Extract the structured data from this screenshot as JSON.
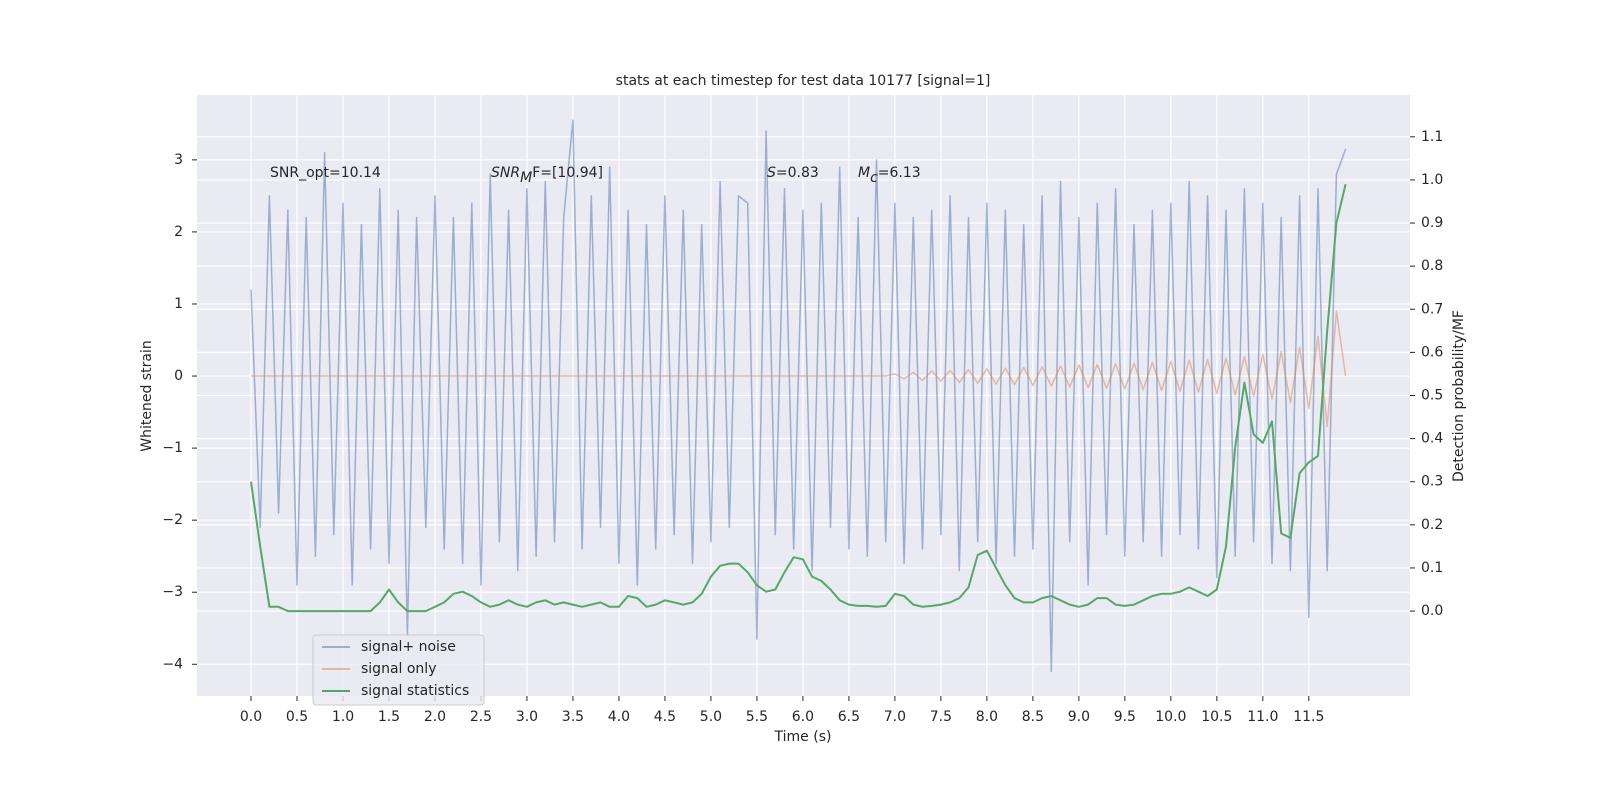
{
  "chart_data": {
    "type": "line",
    "title": "stats at each timestep for test data 10177 [signal=1]",
    "xlabel": "Time (s)",
    "ylabel": "Whitened strain",
    "y2label": "Detection probability/MF",
    "annotations": [
      {
        "text": "SNR_opt=10.14"
      },
      {
        "text": "SNR",
        "sub": "M",
        "after": "F=[10.94]",
        "italic": true
      },
      {
        "text": "S",
        "after": "=0.83",
        "italic": true
      },
      {
        "text": "M",
        "sub": "c",
        "after": "=6.13",
        "italic": true
      }
    ],
    "x": [
      0.0,
      0.1,
      0.2,
      0.3,
      0.4,
      0.5,
      0.6,
      0.7,
      0.8,
      0.9,
      1.0,
      1.1,
      1.2,
      1.3,
      1.4,
      1.5,
      1.6,
      1.7,
      1.8,
      1.9,
      2.0,
      2.1,
      2.2,
      2.3,
      2.4,
      2.5,
      2.6,
      2.7,
      2.8,
      2.9,
      3.0,
      3.1,
      3.2,
      3.3,
      3.4,
      3.5,
      3.6,
      3.7,
      3.8,
      3.9,
      4.0,
      4.1,
      4.2,
      4.3,
      4.4,
      4.5,
      4.6,
      4.7,
      4.8,
      4.9,
      5.0,
      5.1,
      5.2,
      5.3,
      5.4,
      5.5,
      5.6,
      5.7,
      5.8,
      5.9,
      6.0,
      6.1,
      6.2,
      6.3,
      6.4,
      6.5,
      6.6,
      6.7,
      6.8,
      6.9,
      7.0,
      7.1,
      7.2,
      7.3,
      7.4,
      7.5,
      7.6,
      7.7,
      7.8,
      7.9,
      8.0,
      8.1,
      8.2,
      8.3,
      8.4,
      8.5,
      8.6,
      8.7,
      8.8,
      8.9,
      9.0,
      9.1,
      9.2,
      9.3,
      9.4,
      9.5,
      9.6,
      9.7,
      9.8,
      9.9,
      10.0,
      10.1,
      10.2,
      10.3,
      10.4,
      10.5,
      10.6,
      10.7,
      10.8,
      10.9,
      11.0,
      11.1,
      11.2,
      11.3,
      11.4,
      11.5,
      11.6,
      11.7,
      11.8,
      11.9
    ],
    "series": [
      {
        "name": "signal+ noise",
        "color": "#4c72b0",
        "opacity": 0.5,
        "values": [
          1.2,
          -2.1,
          2.5,
          -1.9,
          2.3,
          -2.9,
          2.2,
          -2.5,
          3.1,
          -2.2,
          2.4,
          -2.9,
          2.1,
          -2.4,
          2.6,
          -2.6,
          2.3,
          -3.6,
          2.2,
          -2.1,
          2.5,
          -2.4,
          2.2,
          -2.6,
          2.4,
          -2.9,
          2.8,
          -2.3,
          2.3,
          -2.7,
          2.6,
          -2.5,
          2.7,
          -2.3,
          2.2,
          3.55,
          -2.4,
          2.5,
          -2.1,
          2.9,
          -2.6,
          2.3,
          -2.9,
          2.1,
          -2.4,
          2.5,
          -2.2,
          2.3,
          -2.6,
          2.1,
          -2.3,
          2.7,
          -2.1,
          2.5,
          2.4,
          -3.65,
          3.4,
          -2.2,
          2.6,
          -2.4,
          2.3,
          -2.7,
          2.4,
          -2.1,
          2.9,
          -2.4,
          2.2,
          -2.5,
          3.0,
          -2.3,
          2.4,
          -2.6,
          2.2,
          -2.4,
          2.3,
          -2.2,
          2.5,
          -2.7,
          2.2,
          -2.3,
          2.4,
          -2.6,
          2.3,
          -2.5,
          2.1,
          -2.4,
          2.5,
          -4.1,
          2.7,
          -2.3,
          2.2,
          -2.9,
          2.4,
          -2.2,
          2.6,
          -2.5,
          2.1,
          -2.3,
          2.3,
          -2.5,
          2.4,
          -2.2,
          2.7,
          -2.4,
          2.5,
          -2.8,
          2.3,
          -2.5,
          2.6,
          -2.3,
          2.4,
          -2.6,
          2.2,
          -2.7,
          2.5,
          -3.35,
          2.6,
          -2.7,
          2.8,
          3.15
        ]
      },
      {
        "name": "signal only",
        "color": "#dd8452",
        "opacity": 0.5,
        "values": [
          0,
          0,
          0,
          0,
          0,
          0,
          0,
          0,
          0,
          0,
          0,
          0,
          0,
          0,
          0,
          0,
          0,
          0,
          0,
          0,
          0,
          0,
          0,
          0,
          0,
          0,
          0,
          0,
          0,
          0,
          0,
          0,
          0,
          0,
          0,
          0,
          0,
          0,
          0,
          0,
          0,
          0,
          0,
          0,
          0,
          0,
          0,
          0,
          0,
          0,
          0,
          0,
          0,
          0,
          0,
          0,
          0,
          0,
          0,
          0,
          0,
          0,
          0,
          0,
          0,
          0,
          0,
          0,
          0,
          0,
          0.03,
          -0.04,
          0.05,
          -0.06,
          0.07,
          -0.07,
          0.08,
          -0.09,
          0.09,
          -0.1,
          0.1,
          -0.11,
          0.11,
          -0.12,
          0.12,
          -0.13,
          0.13,
          -0.14,
          0.14,
          -0.15,
          0.15,
          -0.16,
          0.16,
          -0.17,
          0.17,
          -0.18,
          0.18,
          -0.19,
          0.19,
          -0.2,
          0.2,
          -0.21,
          0.22,
          -0.22,
          0.23,
          -0.24,
          0.25,
          -0.26,
          0.27,
          -0.28,
          0.3,
          -0.32,
          0.34,
          -0.37,
          0.4,
          -0.45,
          0.55,
          -0.7,
          0.9,
          0
        ]
      },
      {
        "name": "signal statistics",
        "color": "#55a868",
        "axis": "y2",
        "values": [
          0.3,
          0.15,
          0.01,
          0.01,
          0,
          0,
          0,
          0,
          0,
          0,
          0,
          0,
          0,
          0,
          0.02,
          0.05,
          0.02,
          0,
          0,
          0,
          0.01,
          0.02,
          0.04,
          0.045,
          0.035,
          0.02,
          0.01,
          0.015,
          0.025,
          0.015,
          0.01,
          0.02,
          0.025,
          0.015,
          0.02,
          0.015,
          0.01,
          0.015,
          0.02,
          0.01,
          0.01,
          0.035,
          0.03,
          0.01,
          0.015,
          0.025,
          0.02,
          0.015,
          0.02,
          0.04,
          0.08,
          0.105,
          0.11,
          0.11,
          0.09,
          0.06,
          0.045,
          0.05,
          0.09,
          0.125,
          0.12,
          0.08,
          0.07,
          0.05,
          0.025,
          0.015,
          0.012,
          0.012,
          0.01,
          0.012,
          0.04,
          0.035,
          0.015,
          0.01,
          0.012,
          0.015,
          0.02,
          0.03,
          0.055,
          0.13,
          0.14,
          0.1,
          0.06,
          0.03,
          0.02,
          0.02,
          0.03,
          0.035,
          0.025,
          0.015,
          0.01,
          0.015,
          0.03,
          0.03,
          0.015,
          0.012,
          0.015,
          0.025,
          0.035,
          0.04,
          0.04,
          0.045,
          0.055,
          0.045,
          0.035,
          0.05,
          0.15,
          0.38,
          0.53,
          0.41,
          0.39,
          0.44,
          0.18,
          0.17,
          0.32,
          0.345,
          0.36,
          0.65,
          0.9,
          0.99
        ]
      }
    ],
    "xlim": [
      -0.587,
      12.6
    ],
    "ylim": [
      -4.44,
      3.9
    ],
    "y2lim": [
      -0.197,
      1.197
    ],
    "xticks": [
      {
        "value": 0,
        "label": "0.0"
      },
      {
        "value": 0.5,
        "label": "0.5"
      },
      {
        "value": 1,
        "label": "1.0"
      },
      {
        "value": 1.5,
        "label": "1.5"
      },
      {
        "value": 2,
        "label": "2.0"
      },
      {
        "value": 2.5,
        "label": "2.5"
      },
      {
        "value": 3,
        "label": "3.0"
      },
      {
        "value": 3.5,
        "label": "3.5"
      },
      {
        "value": 4,
        "label": "4.0"
      },
      {
        "value": 4.5,
        "label": "4.5"
      },
      {
        "value": 5,
        "label": "5.0"
      },
      {
        "value": 5.5,
        "label": "5.5"
      },
      {
        "value": 6,
        "label": "6.0"
      },
      {
        "value": 6.5,
        "label": "6.5"
      },
      {
        "value": 7,
        "label": "7.0"
      },
      {
        "value": 7.5,
        "label": "7.5"
      },
      {
        "value": 8,
        "label": "8.0"
      },
      {
        "value": 8.5,
        "label": "8.5"
      },
      {
        "value": 9,
        "label": "9.0"
      },
      {
        "value": 9.5,
        "label": "9.5"
      },
      {
        "value": 10,
        "label": "10.0"
      },
      {
        "value": 10.5,
        "label": "10.5"
      },
      {
        "value": 11,
        "label": "11.0"
      },
      {
        "value": 11.5,
        "label": "11.5"
      }
    ],
    "yticks": [
      {
        "value": -4,
        "label": "−4"
      },
      {
        "value": -3,
        "label": "−3"
      },
      {
        "value": -2,
        "label": "−2"
      },
      {
        "value": -1,
        "label": "−1"
      },
      0,
      1,
      2,
      3
    ],
    "y2ticks": [
      {
        "value": 0,
        "label": "0.0"
      },
      {
        "value": 0.1,
        "label": "0.1"
      },
      {
        "value": 0.2,
        "label": "0.2"
      },
      {
        "value": 0.3,
        "label": "0.3"
      },
      {
        "value": 0.4,
        "label": "0.4"
      },
      {
        "value": 0.5,
        "label": "0.5"
      },
      {
        "value": 0.6,
        "label": "0.6"
      },
      {
        "value": 0.7,
        "label": "0.7"
      },
      {
        "value": 0.8,
        "label": "0.8"
      },
      {
        "value": 0.9,
        "label": "0.9"
      },
      {
        "value": 1,
        "label": "1.0"
      },
      {
        "value": 1.1,
        "label": "1.1"
      }
    ],
    "grid": true,
    "legend": "lower left",
    "background": "#eaeaf2"
  }
}
